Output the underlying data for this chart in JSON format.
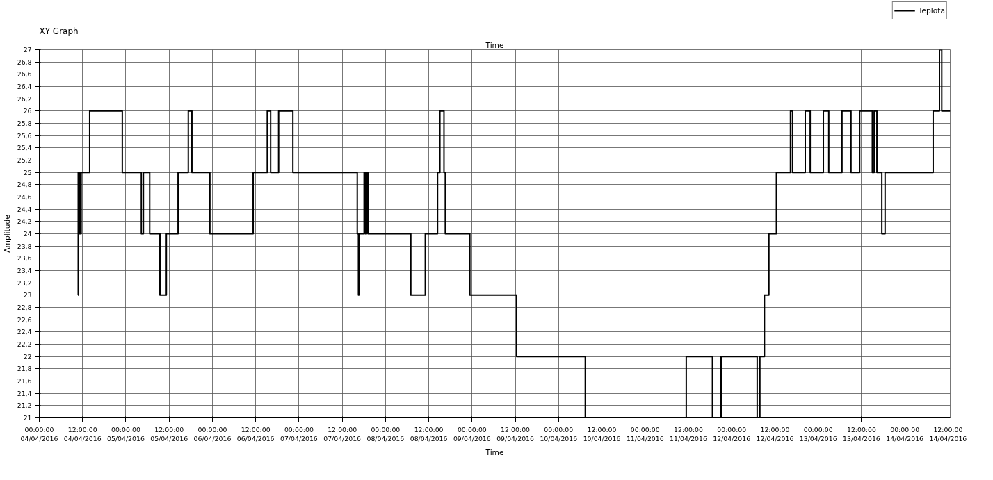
{
  "chart_data": {
    "type": "step",
    "title": "XY Graph",
    "xlabel": "Time",
    "ylabel": "Amplitude",
    "annotations": [
      "Time"
    ],
    "xlim": [
      "2016-04-04T00:00",
      "2016-04-14T12:36"
    ],
    "ylim": [
      21,
      27
    ],
    "xticks": [
      {
        "value": "2016-04-04T00:00",
        "label": "00:00:00\n04/04/2016"
      },
      {
        "value": "2016-04-04T12:00",
        "label": "12:00:00\n04/04/2016"
      },
      {
        "value": "2016-04-05T00:00",
        "label": "00:00:00\n05/04/2016"
      },
      {
        "value": "2016-04-05T12:00",
        "label": "12:00:00\n05/04/2016"
      },
      {
        "value": "2016-04-06T00:00",
        "label": "00:00:00\n06/04/2016"
      },
      {
        "value": "2016-04-06T12:00",
        "label": "12:00:00\n06/04/2016"
      },
      {
        "value": "2016-04-07T00:00",
        "label": "00:00:00\n07/04/2016"
      },
      {
        "value": "2016-04-07T12:00",
        "label": "12:00:00\n07/04/2016"
      },
      {
        "value": "2016-04-08T00:00",
        "label": "00:00:00\n08/04/2016"
      },
      {
        "value": "2016-04-08T12:00",
        "label": "12:00:00\n08/04/2016"
      },
      {
        "value": "2016-04-09T00:00",
        "label": "00:00:00\n09/04/2016"
      },
      {
        "value": "2016-04-09T12:00",
        "label": "12:00:00\n09/04/2016"
      },
      {
        "value": "2016-04-10T00:00",
        "label": "00:00:00\n10/04/2016"
      },
      {
        "value": "2016-04-10T12:00",
        "label": "12:00:00\n10/04/2016"
      },
      {
        "value": "2016-04-11T00:00",
        "label": "00:00:00\n11/04/2016"
      },
      {
        "value": "2016-04-11T12:00",
        "label": "12:00:00\n11/04/2016"
      },
      {
        "value": "2016-04-12T00:00",
        "label": "00:00:00\n12/04/2016"
      },
      {
        "value": "2016-04-12T12:00",
        "label": "12:00:00\n12/04/2016"
      },
      {
        "value": "2016-04-13T00:00",
        "label": "00:00:00\n13/04/2016"
      },
      {
        "value": "2016-04-13T12:00",
        "label": "12:00:00\n13/04/2016"
      },
      {
        "value": "2016-04-14T00:00",
        "label": "00:00:00\n14/04/2016"
      },
      {
        "value": "2016-04-14T12:00",
        "label": "12:00:00\n14/04/2016"
      }
    ],
    "yticks": [
      21,
      {
        "value": 21.2,
        "label": "21,2"
      },
      {
        "value": 21.4,
        "label": "21,4"
      },
      {
        "value": 21.6,
        "label": "21,6"
      },
      {
        "value": 21.8,
        "label": "21,8"
      },
      22,
      {
        "value": 22.2,
        "label": "22,2"
      },
      {
        "value": 22.4,
        "label": "22,4"
      },
      {
        "value": 22.6,
        "label": "22,6"
      },
      {
        "value": 22.8,
        "label": "22,8"
      },
      23,
      {
        "value": 23.2,
        "label": "23,2"
      },
      {
        "value": 23.4,
        "label": "23,4"
      },
      {
        "value": 23.6,
        "label": "23,6"
      },
      {
        "value": 23.8,
        "label": "23,8"
      },
      24,
      {
        "value": 24.2,
        "label": "24,2"
      },
      {
        "value": 24.4,
        "label": "24,4"
      },
      {
        "value": 24.6,
        "label": "24,6"
      },
      {
        "value": 24.8,
        "label": "24,8"
      },
      25,
      {
        "value": 25.2,
        "label": "25,2"
      },
      {
        "value": 25.4,
        "label": "25,4"
      },
      {
        "value": 25.6,
        "label": "25,6"
      },
      {
        "value": 25.8,
        "label": "25,8"
      },
      26,
      {
        "value": 26.2,
        "label": "26,2"
      },
      {
        "value": 26.4,
        "label": "26,4"
      },
      {
        "value": 26.6,
        "label": "26,6"
      },
      {
        "value": 26.8,
        "label": "26,8"
      },
      27
    ],
    "grid": true,
    "legend": "top right",
    "marker": "none",
    "line_style": "solid",
    "series": [
      {
        "name": "Teplota",
        "color": "#000000",
        "x": [
          "2016-04-04T10:42",
          "2016-04-04T10:48",
          "2016-04-04T11:00",
          "2016-04-04T11:18",
          "2016-04-04T11:30",
          "2016-04-04T11:36",
          "2016-04-04T13:58",
          "2016-04-04T23:01",
          "2016-04-05T04:18",
          "2016-04-05T04:52",
          "2016-04-05T06:37",
          "2016-04-05T09:27",
          "2016-04-05T11:14",
          "2016-04-05T14:29",
          "2016-04-05T17:19",
          "2016-04-05T18:19",
          "2016-04-05T23:18",
          "2016-04-06T11:18",
          "2016-04-06T15:13",
          "2016-04-06T16:09",
          "2016-04-06T18:22",
          "2016-04-06T22:19",
          "2016-04-07T16:10",
          "2016-04-07T16:30",
          "2016-04-07T16:38",
          "2016-04-07T18:04",
          "2016-04-07T18:23",
          "2016-04-07T18:45",
          "2016-04-07T19:08",
          "2016-04-08T07:01",
          "2016-04-08T11:02",
          "2016-04-08T14:26",
          "2016-04-08T15:05",
          "2016-04-08T16:13",
          "2016-04-08T16:35",
          "2016-04-08T23:23",
          "2016-04-09T12:22",
          "2016-04-10T07:24",
          "2016-04-11T11:24",
          "2016-04-11T18:40",
          "2016-04-11T21:04",
          "2016-04-12T07:04",
          "2016-04-12T07:49",
          "2016-04-12T09:05",
          "2016-04-12T10:19",
          "2016-04-12T12:24",
          "2016-04-12T16:18",
          "2016-04-12T16:52",
          "2016-04-12T20:24",
          "2016-04-12T21:46",
          "2016-04-13T01:25",
          "2016-04-13T02:55",
          "2016-04-13T06:35",
          "2016-04-13T09:05",
          "2016-04-13T11:29",
          "2016-04-13T15:00",
          "2016-04-13T15:30",
          "2016-04-13T16:16",
          "2016-04-13T17:38",
          "2016-04-13T18:32",
          "2016-04-14T07:52",
          "2016-04-14T09:37",
          "2016-04-14T10:15",
          "2016-04-14T12:36"
        ],
        "values": [
          23,
          25,
          24,
          25,
          24,
          25,
          26,
          25,
          24,
          25,
          24,
          23,
          24,
          25,
          26,
          25,
          24,
          25,
          26,
          25,
          26,
          25,
          24,
          23,
          24,
          25,
          24,
          25,
          24,
          23,
          24,
          25,
          26,
          25,
          24,
          23,
          22,
          21,
          22,
          21,
          22,
          21,
          22,
          23,
          24,
          25,
          26,
          25,
          26,
          25,
          26,
          25,
          26,
          25,
          26,
          25,
          26,
          25,
          24,
          25,
          26,
          27,
          26,
          26
        ]
      }
    ]
  }
}
